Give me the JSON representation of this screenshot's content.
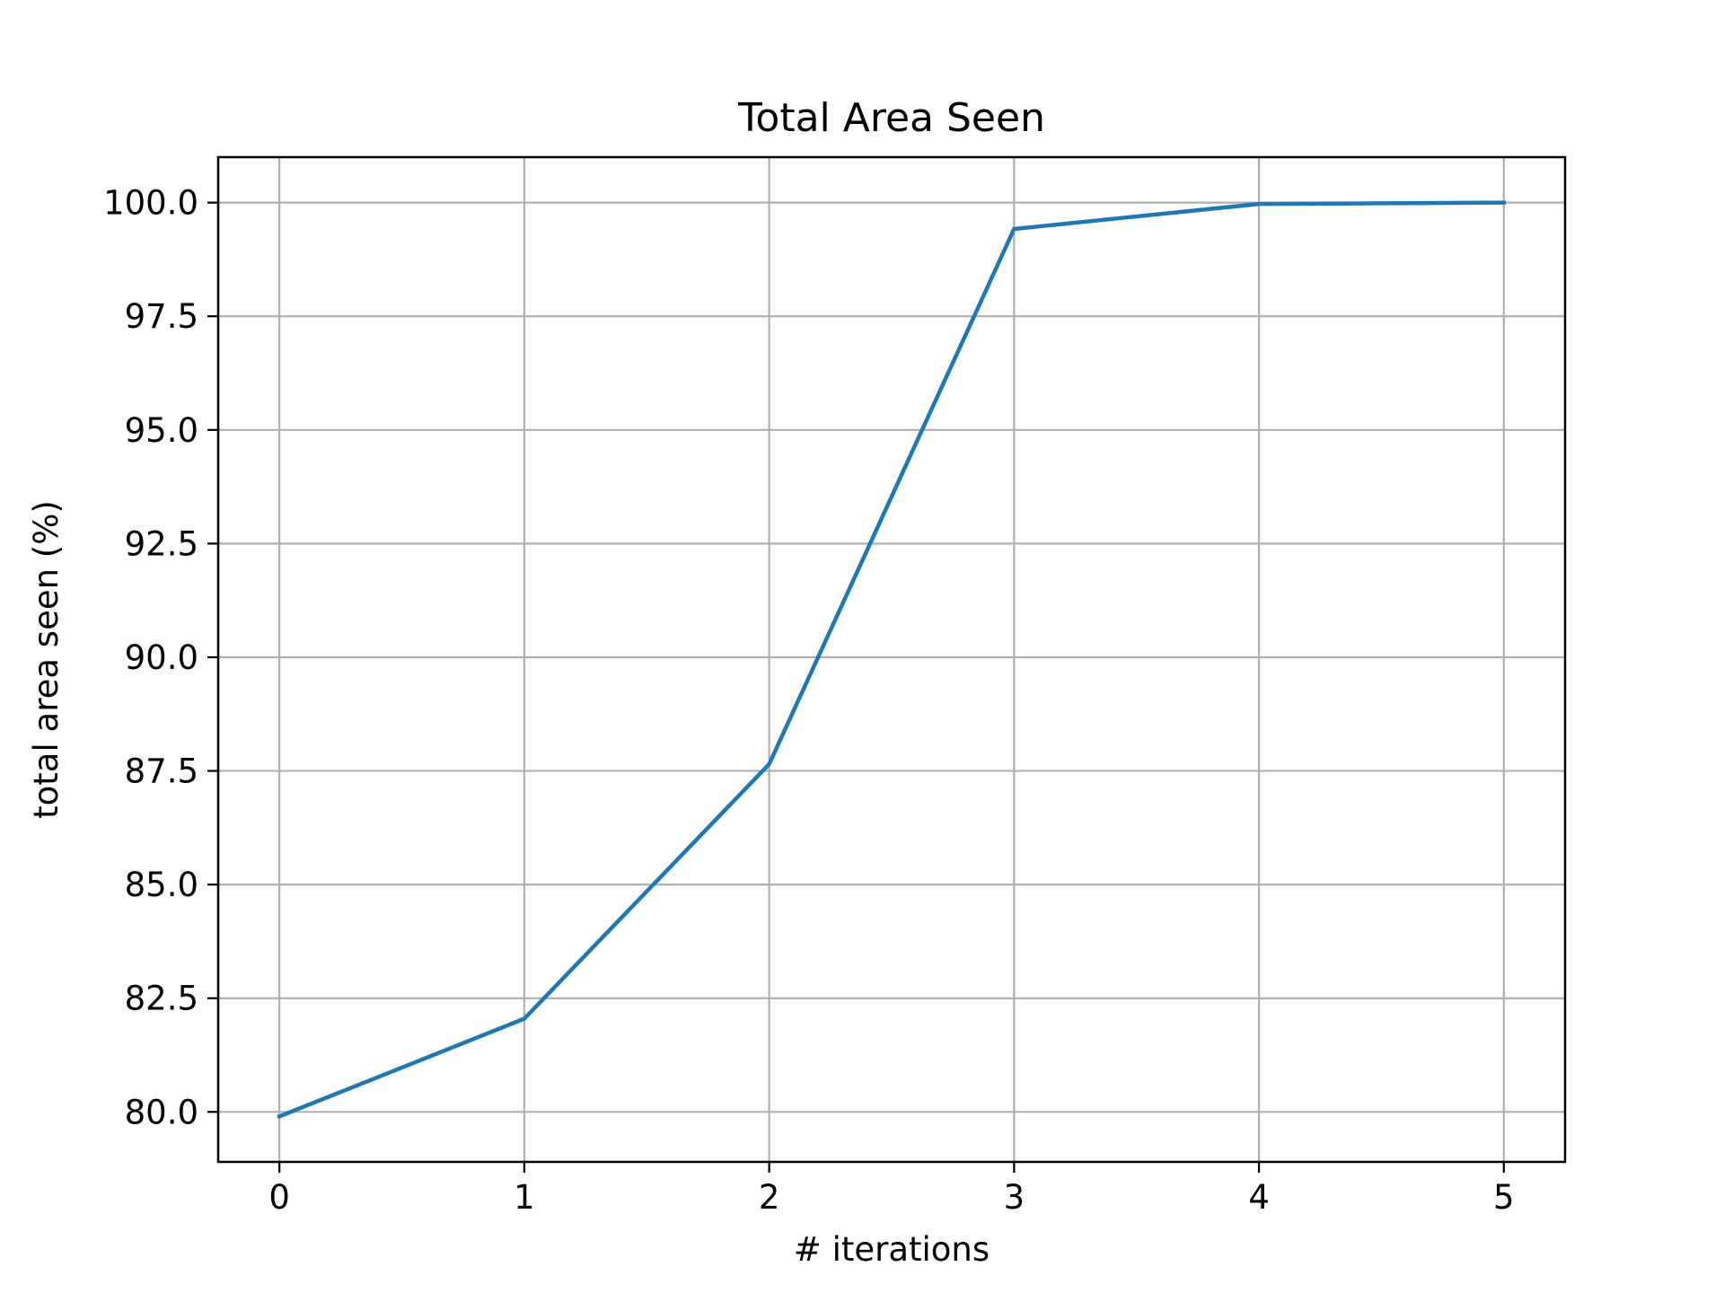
{
  "chart_data": {
    "type": "line",
    "title": "Total Area Seen",
    "xlabel": "# iterations",
    "ylabel": "total area seen (%)",
    "x": [
      0,
      1,
      2,
      3,
      4,
      5
    ],
    "series": [
      {
        "values": [
          79.9,
          82.05,
          87.65,
          99.42,
          99.97,
          100.0
        ],
        "color": "#1f77b4"
      }
    ],
    "xlim": [
      -0.25,
      5.25
    ],
    "ylim": [
      78.9,
      101.0
    ],
    "xticks": [
      0,
      1,
      2,
      3,
      4,
      5
    ],
    "xtick_labels": [
      "0",
      "1",
      "2",
      "3",
      "4",
      "5"
    ],
    "yticks": [
      80.0,
      82.5,
      85.0,
      87.5,
      90.0,
      92.5,
      95.0,
      97.5,
      100.0
    ],
    "ytick_labels": [
      "80.0",
      "82.5",
      "85.0",
      "87.5",
      "90.0",
      "92.5",
      "95.0",
      "97.5",
      "100.0"
    ],
    "grid": true,
    "legend": false,
    "colors": {
      "grid": "#b0b0b0",
      "axes": "#000000"
    }
  }
}
